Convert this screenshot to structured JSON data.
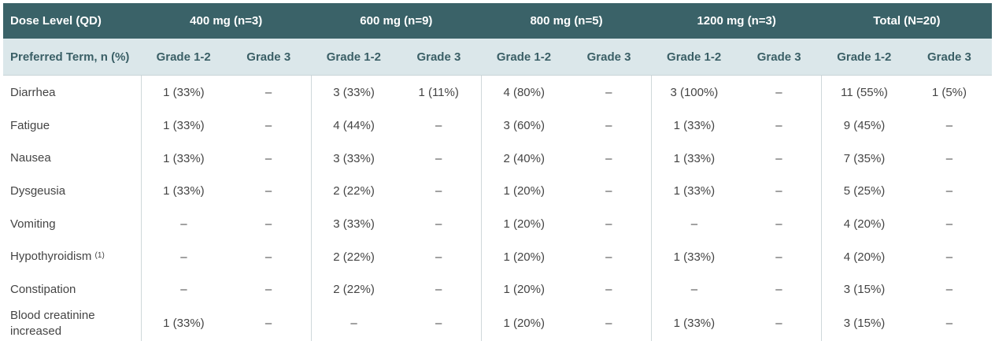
{
  "header": {
    "corner": "Dose Level (QD)",
    "dose_levels": [
      "400 mg (n=3)",
      "600 mg (n=9)",
      "800 mg (n=5)",
      "1200 mg (n=3)",
      "Total (N=20)"
    ],
    "subheader_corner": "Preferred Term, n (%)",
    "grade_labels": [
      "Grade 1-2",
      "Grade 3"
    ]
  },
  "rows": [
    {
      "term": "Diarrhea",
      "sup": "",
      "cells": [
        "1 (33%)",
        "–",
        "3 (33%)",
        "1 (11%)",
        "4 (80%)",
        "–",
        "3 (100%)",
        "–",
        "11 (55%)",
        "1 (5%)"
      ]
    },
    {
      "term": "Fatigue",
      "sup": "",
      "cells": [
        "1 (33%)",
        "–",
        "4 (44%)",
        "–",
        "3 (60%)",
        "–",
        "1 (33%)",
        "–",
        "9 (45%)",
        "–"
      ]
    },
    {
      "term": "Nausea",
      "sup": "",
      "cells": [
        "1 (33%)",
        "–",
        "3 (33%)",
        "–",
        "2 (40%)",
        "–",
        "1 (33%)",
        "–",
        "7 (35%)",
        "–"
      ]
    },
    {
      "term": "Dysgeusia",
      "sup": "",
      "cells": [
        "1 (33%)",
        "–",
        "2 (22%)",
        "–",
        "1 (20%)",
        "–",
        "1 (33%)",
        "–",
        "5 (25%)",
        "–"
      ]
    },
    {
      "term": "Vomiting",
      "sup": "",
      "cells": [
        "–",
        "–",
        "3 (33%)",
        "–",
        "1 (20%)",
        "–",
        "–",
        "–",
        "4 (20%)",
        "–"
      ]
    },
    {
      "term": "Hypothyroidism",
      "sup": "(1)",
      "cells": [
        "–",
        "–",
        "2 (22%)",
        "–",
        "1 (20%)",
        "–",
        "1 (33%)",
        "–",
        "4 (20%)",
        "–"
      ]
    },
    {
      "term": "Constipation",
      "sup": "",
      "cells": [
        "–",
        "–",
        "2 (22%)",
        "–",
        "1 (20%)",
        "–",
        "–",
        "–",
        "3 (15%)",
        "–"
      ]
    },
    {
      "term": "Blood creatinine increased",
      "sup": "",
      "cells": [
        "1 (33%)",
        "–",
        "–",
        "–",
        "1 (20%)",
        "–",
        "1 (33%)",
        "–",
        "3 (15%)",
        "–"
      ]
    }
  ],
  "colors": {
    "header_bg": "#3a6268",
    "subheader_bg": "#dbe7ea",
    "subheader_text": "#3a5f66"
  }
}
